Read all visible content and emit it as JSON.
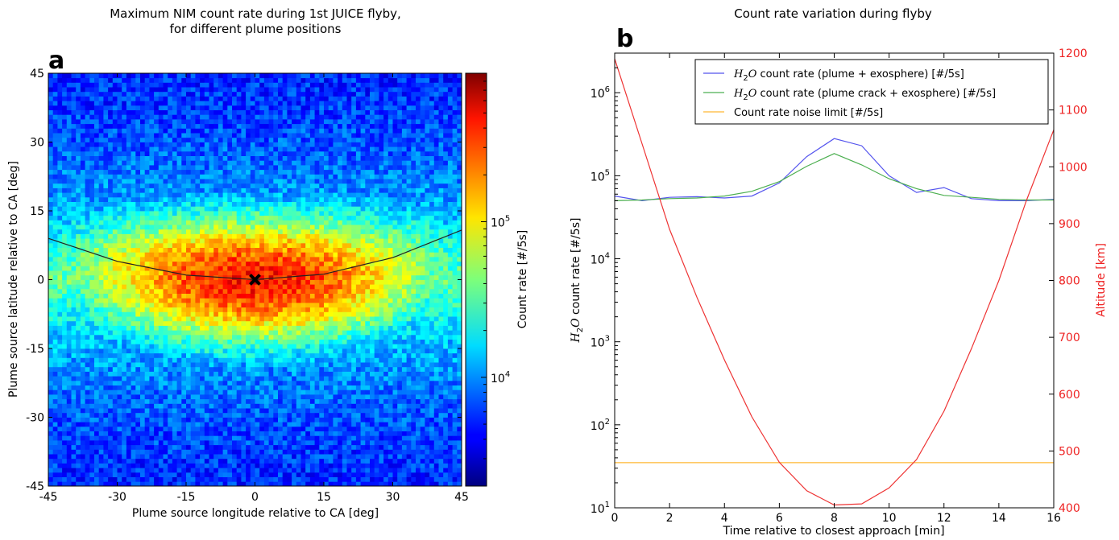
{
  "chart_data": [
    {
      "panel": "a",
      "type": "heatmap",
      "title_lines": [
        "Maximum NIM count rate during 1st JUICE flyby,",
        "for different plume positions"
      ],
      "xlabel": "Plume source longitude relative to CA [deg]",
      "ylabel": "Plume source latitude relative to CA [deg]",
      "xlim": [
        -45,
        45
      ],
      "ylim": [
        -45,
        45
      ],
      "xticks": [
        "-45",
        "-30",
        "-15",
        "0",
        "15",
        "30",
        "45"
      ],
      "yticks": [
        "-45",
        "-30",
        "-15",
        "0",
        "15",
        "30",
        "45"
      ],
      "colorbar": {
        "label": "Count rate [#/5s]",
        "scale": "log",
        "range": [
          2000,
          900000
        ],
        "colormap": "jet",
        "tick_labels": [
          {
            "base": "10",
            "exp": "4",
            "value": 10000
          },
          {
            "base": "10",
            "exp": "5",
            "value": 100000
          }
        ]
      },
      "field": {
        "peak_count_rate": 400000,
        "background_count_rate": 4000,
        "center_lon": 0,
        "center_lat": 0,
        "lat_spread_deg": 12,
        "lon_spread_deg": 32,
        "grid_step_deg": 1
      },
      "ground_track": {
        "description": "parabolic curve through CA",
        "points": [
          [
            -45,
            9
          ],
          [
            -30,
            4
          ],
          [
            -15,
            1
          ],
          [
            0,
            0
          ],
          [
            15,
            1.2
          ],
          [
            30,
            4.8
          ],
          [
            45,
            10.8
          ]
        ]
      },
      "marker": {
        "symbol": "x",
        "lon": 0,
        "lat": 0
      }
    },
    {
      "panel": "b",
      "type": "line",
      "title": "Count rate variation during flyby",
      "xlabel": "Time relative to closest approach [min]",
      "ylabel_left": {
        "italic": "H",
        "sub": "2",
        "italic2": "O",
        "rest": " count rate [#/5s]"
      },
      "ylabel_right": "Altitude [km]",
      "xlim": [
        0,
        16
      ],
      "ylim_left": [
        10,
        3000000
      ],
      "ylim_left_scale": "log",
      "ylim_right": [
        400,
        1200
      ],
      "xticks": [
        "0",
        "2",
        "4",
        "6",
        "8",
        "10",
        "12",
        "14",
        "16"
      ],
      "yticks_left": [
        {
          "base": "10",
          "exp": "1",
          "value": 10
        },
        {
          "base": "10",
          "exp": "2",
          "value": 100
        },
        {
          "base": "10",
          "exp": "3",
          "value": 1000
        },
        {
          "base": "10",
          "exp": "4",
          "value": 10000
        },
        {
          "base": "10",
          "exp": "5",
          "value": 100000
        },
        {
          "base": "10",
          "exp": "6",
          "value": 1000000
        }
      ],
      "yticks_right": [
        "400",
        "500",
        "600",
        "700",
        "800",
        "900",
        "1000",
        "1100",
        "1200"
      ],
      "legend_position": "top-right",
      "series": [
        {
          "name_parts": {
            "italic": "H",
            "sub": "2",
            "italic2": "O",
            "rest": " count rate (plume + exosphere) [#/5s]"
          },
          "color": "#5555ee",
          "axis": "left",
          "x": [
            0,
            1,
            2,
            3,
            4,
            5,
            6,
            7,
            8,
            9,
            10,
            11,
            12,
            13,
            14,
            15,
            16
          ],
          "y": [
            57000,
            50000,
            55000,
            56000,
            54000,
            57000,
            82000,
            170000,
            280000,
            230000,
            100000,
            63000,
            72000,
            53000,
            50000,
            50000,
            52000
          ]
        },
        {
          "name_parts": {
            "italic": "H",
            "sub": "2",
            "italic2": "O",
            "rest": " count rate (plume crack + exosphere) [#/5s]"
          },
          "color": "#4caf50",
          "axis": "left",
          "x": [
            0,
            1,
            2,
            3,
            4,
            5,
            6,
            7,
            8,
            9,
            10,
            11,
            12,
            13,
            14,
            15,
            16
          ],
          "y": [
            50000,
            51000,
            53000,
            54000,
            57000,
            65000,
            85000,
            130000,
            185000,
            135000,
            92000,
            70000,
            58000,
            55000,
            52000,
            51000,
            51000
          ]
        },
        {
          "name": "Count rate noise limit [#/5s]",
          "color": "#ffb733",
          "axis": "left",
          "x": [
            0,
            16
          ],
          "y": [
            35,
            35
          ]
        },
        {
          "name": "",
          "color": "#ee3333",
          "axis": "right",
          "x": [
            0,
            1,
            2,
            3,
            4,
            5,
            6,
            7,
            8,
            9,
            10,
            11,
            12,
            13,
            14,
            15,
            16
          ],
          "y": [
            1190,
            1040,
            890,
            770,
            660,
            560,
            480,
            430,
            405,
            407,
            435,
            485,
            570,
            680,
            800,
            940,
            1065
          ]
        }
      ]
    }
  ]
}
